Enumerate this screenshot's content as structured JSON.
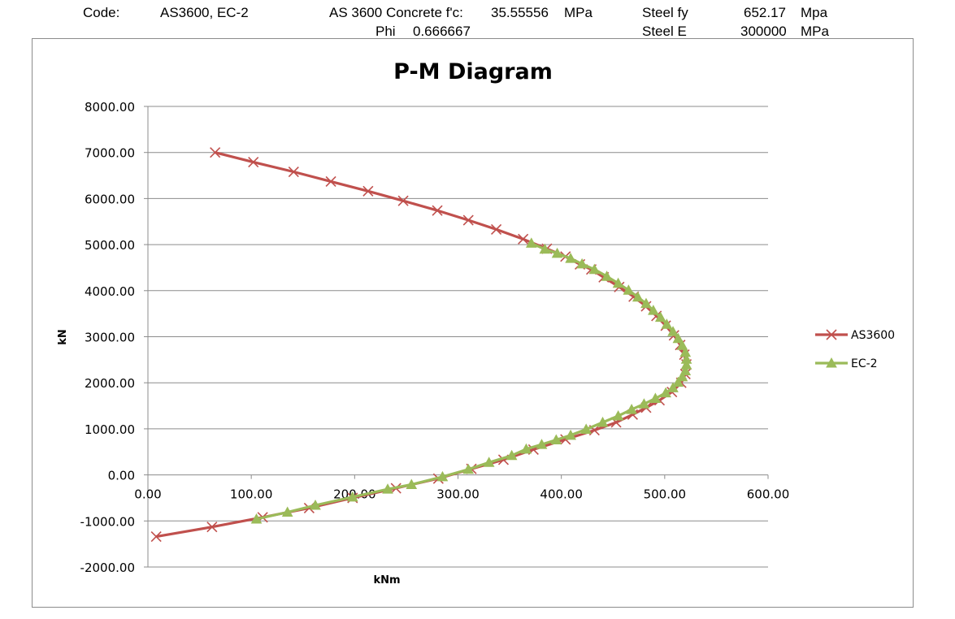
{
  "header": {
    "code_label": "Code:",
    "code_value": "AS3600, EC-2",
    "concrete_label": "AS 3600 Concrete f'c:",
    "concrete_value": "35.55556",
    "concrete_unit": "MPa",
    "phi_label": "Phi",
    "phi_value": "0.666667",
    "fy_label": "Steel fy",
    "fy_value": "652.17",
    "fy_unit": "Mpa",
    "e_label": "Steel E",
    "e_value": "300000",
    "e_unit": "MPa"
  },
  "chart_data": {
    "type": "line",
    "title": "P-M Diagram",
    "xlabel": "kNm",
    "ylabel": "kN",
    "xlim": [
      0,
      600
    ],
    "ylim": [
      -2000,
      8000
    ],
    "x_ticks": [
      "0.00",
      "100.00",
      "200.00",
      "300.00",
      "400.00",
      "500.00",
      "600.00"
    ],
    "y_ticks": [
      "8000.00",
      "7000.00",
      "6000.00",
      "5000.00",
      "4000.00",
      "3000.00",
      "2000.00",
      "1000.00",
      "0.00",
      "-1000.00",
      "-2000.00"
    ],
    "grid": "horizontal",
    "legend_position": "right",
    "series": [
      {
        "name": "AS3600",
        "color": "#c0504d",
        "marker": "x",
        "points": [
          [
            65,
            7000
          ],
          [
            102,
            6790
          ],
          [
            141,
            6580
          ],
          [
            177,
            6370
          ],
          [
            213,
            6160
          ],
          [
            247,
            5950
          ],
          [
            280,
            5740
          ],
          [
            310,
            5530
          ],
          [
            337,
            5330
          ],
          [
            363,
            5120
          ],
          [
            386,
            4910
          ],
          [
            404,
            4740
          ],
          [
            418,
            4570
          ],
          [
            429,
            4460
          ],
          [
            441,
            4290
          ],
          [
            456,
            4080
          ],
          [
            470,
            3870
          ],
          [
            482,
            3660
          ],
          [
            492,
            3450
          ],
          [
            501,
            3240
          ],
          [
            509,
            3030
          ],
          [
            515,
            2820
          ],
          [
            519,
            2610
          ],
          [
            521,
            2400
          ],
          [
            520,
            2190
          ],
          [
            516,
            2000
          ],
          [
            507,
            1800
          ],
          [
            495,
            1620
          ],
          [
            482,
            1460
          ],
          [
            469,
            1310
          ],
          [
            453,
            1140
          ],
          [
            432,
            970
          ],
          [
            404,
            770
          ],
          [
            373,
            550
          ],
          [
            344,
            330
          ],
          [
            313,
            130
          ],
          [
            281,
            -80
          ],
          [
            240,
            -290
          ],
          [
            198,
            -500
          ],
          [
            156,
            -720
          ],
          [
            111,
            -920
          ],
          [
            62,
            -1130
          ],
          [
            8,
            -1340
          ]
        ]
      },
      {
        "name": "EC-2",
        "color": "#9bbb59",
        "marker": "triangle",
        "points": [
          [
            371,
            5030
          ],
          [
            384,
            4900
          ],
          [
            396,
            4810
          ],
          [
            409,
            4700
          ],
          [
            420,
            4580
          ],
          [
            432,
            4460
          ],
          [
            444,
            4310
          ],
          [
            455,
            4160
          ],
          [
            465,
            4010
          ],
          [
            474,
            3860
          ],
          [
            482,
            3720
          ],
          [
            489,
            3570
          ],
          [
            496,
            3420
          ],
          [
            502,
            3270
          ],
          [
            508,
            3110
          ],
          [
            513,
            2960
          ],
          [
            517,
            2810
          ],
          [
            520,
            2660
          ],
          [
            521,
            2510
          ],
          [
            521,
            2390
          ],
          [
            520,
            2260
          ],
          [
            517,
            2130
          ],
          [
            513,
            2010
          ],
          [
            508,
            1890
          ],
          [
            501,
            1780
          ],
          [
            491,
            1660
          ],
          [
            480,
            1540
          ],
          [
            468,
            1420
          ],
          [
            455,
            1280
          ],
          [
            440,
            1140
          ],
          [
            424,
            990
          ],
          [
            409,
            860
          ],
          [
            395,
            760
          ],
          [
            381,
            660
          ],
          [
            366,
            560
          ],
          [
            352,
            420
          ],
          [
            330,
            270
          ],
          [
            310,
            120
          ],
          [
            285,
            -40
          ],
          [
            255,
            -210
          ],
          [
            232,
            -310
          ],
          [
            198,
            -480
          ],
          [
            162,
            -660
          ],
          [
            135,
            -810
          ],
          [
            105,
            -960
          ]
        ]
      }
    ]
  }
}
